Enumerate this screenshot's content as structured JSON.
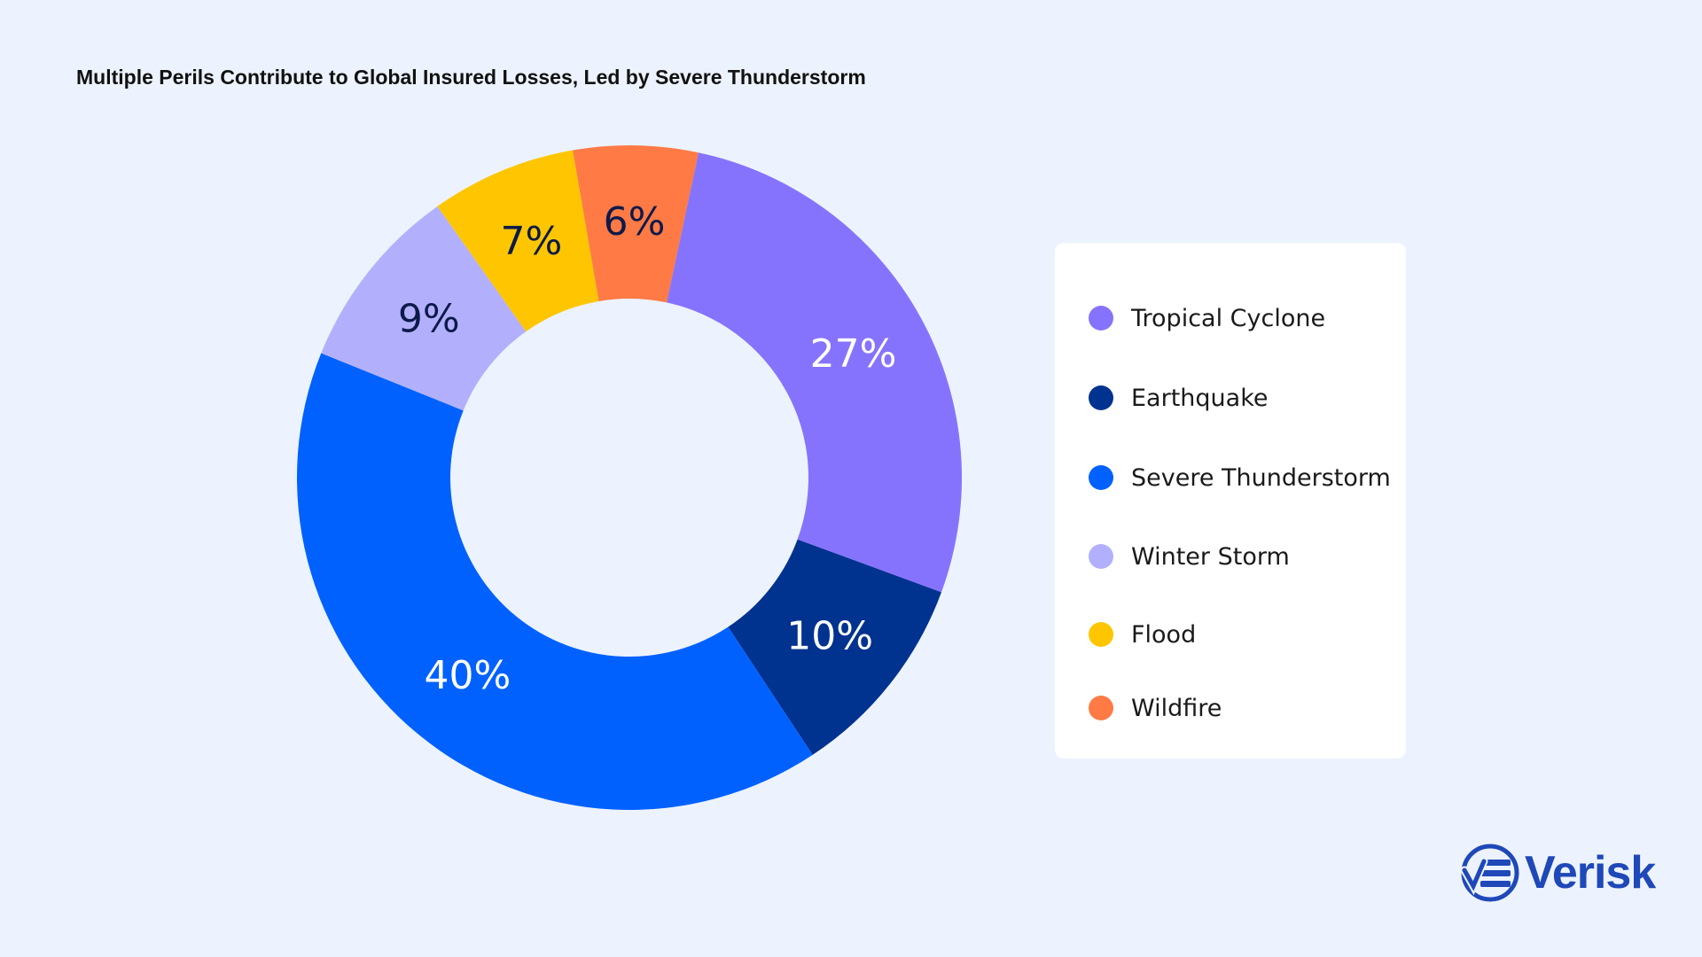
{
  "title": "Multiple Perils Contribute to Global Insured Losses, Led by Severe Thunderstorm",
  "chart_data": {
    "type": "pie",
    "donut": true,
    "legend_position": "right",
    "series": [
      {
        "name": "Tropical Cyclone",
        "value": 27,
        "label": "27%",
        "color": "#8673fd",
        "label_color": "#ffffff"
      },
      {
        "name": "Earthquake",
        "value": 10,
        "label": "10%",
        "color": "#00328f",
        "label_color": "#ffffff"
      },
      {
        "name": "Severe Thunderstorm",
        "value": 40,
        "label": "40%",
        "color": "#0061ff",
        "label_color": "#ffffff"
      },
      {
        "name": "Winter Storm",
        "value": 9,
        "label": "9%",
        "color": "#b2b0fd",
        "label_color": "#0d1a4a"
      },
      {
        "name": "Flood",
        "value": 7,
        "label": "7%",
        "color": "#ffc600",
        "label_color": "#0d1a4a"
      },
      {
        "name": "Wildfire",
        "value": 6,
        "label": "6%",
        "color": "#ff7a45",
        "label_color": "#0d1a4a"
      }
    ]
  },
  "brand": {
    "name": "Verisk",
    "color": "#1f48b8",
    "icon": "verisk-logo-icon"
  }
}
